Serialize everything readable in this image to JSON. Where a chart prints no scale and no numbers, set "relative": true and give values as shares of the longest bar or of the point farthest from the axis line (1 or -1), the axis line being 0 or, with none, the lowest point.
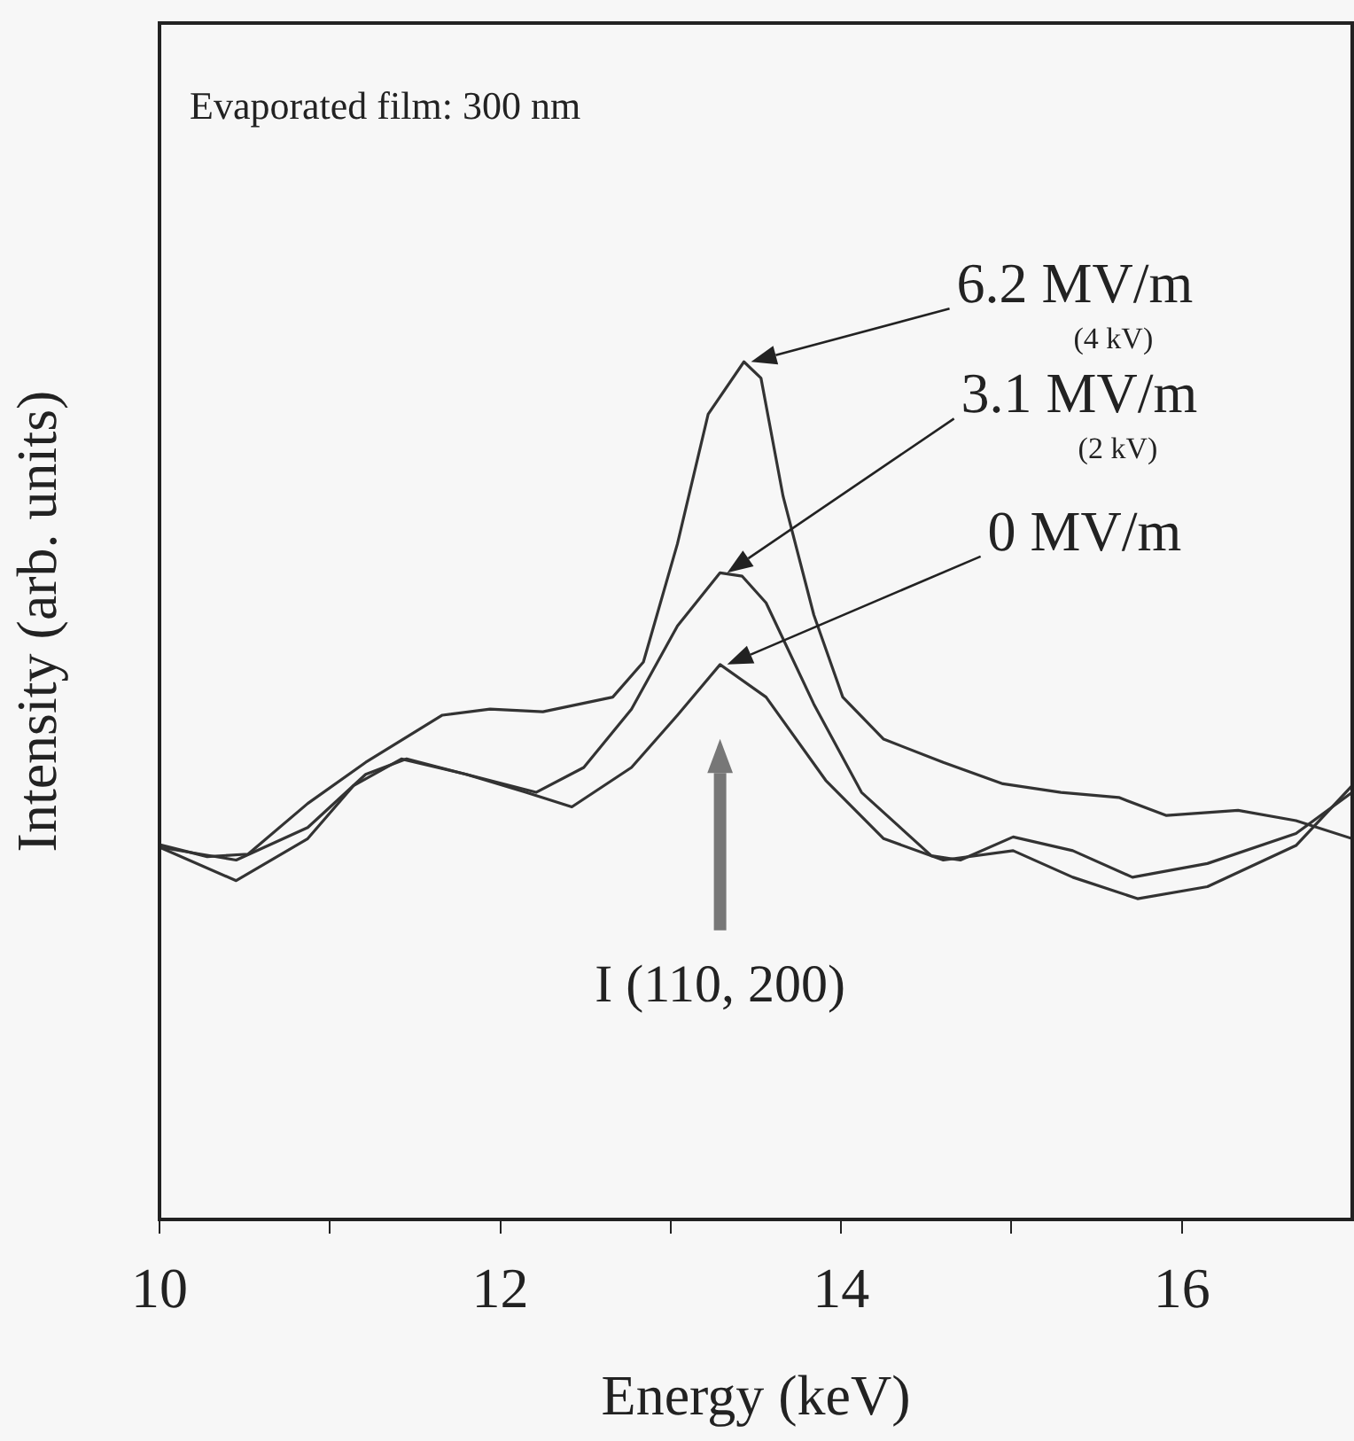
{
  "chart_data": {
    "type": "line",
    "relative": true,
    "xlabel": "Energy (keV)",
    "ylabel": "Intensity (arb. units)",
    "xlim": [
      10,
      17
    ],
    "xticks": [
      10,
      {
        "value": 11,
        "label": null
      },
      12,
      {
        "value": 13,
        "label": null
      },
      14,
      {
        "value": 15,
        "label": null
      },
      16
    ],
    "grid": false,
    "legend": false,
    "marker": "none",
    "line_style": "solid",
    "annotations": [
      "Evaporated film: 300 nm",
      "(4 kV)",
      "(2 kV)",
      "I (110, 200)"
    ],
    "series": [
      {
        "name": "6.2 MV/m",
        "color": "#333333",
        "x": [
          10.0,
          10.28,
          10.52,
          10.87,
          11.21,
          11.66,
          11.94,
          12.25,
          12.66,
          12.84,
          13.04,
          13.22,
          13.43,
          13.53,
          13.66,
          13.84,
          14.01,
          14.25,
          14.6,
          14.95,
          15.29,
          15.63,
          15.91,
          16.33,
          16.67,
          17.0
        ],
        "values": [
          0.437,
          0.423,
          0.426,
          0.485,
          0.533,
          0.588,
          0.595,
          0.592,
          0.609,
          0.65,
          0.788,
          0.939,
          1.0,
          0.981,
          0.843,
          0.705,
          0.609,
          0.56,
          0.533,
          0.508,
          0.498,
          0.492,
          0.471,
          0.477,
          0.465,
          0.444
        ]
      },
      {
        "name": "3.1 MV/m",
        "color": "#333333",
        "x": [
          10.0,
          10.45,
          10.87,
          11.21,
          11.45,
          11.8,
          12.21,
          12.49,
          12.77,
          13.04,
          13.29,
          13.42,
          13.56,
          13.84,
          14.12,
          14.53,
          14.7,
          15.01,
          15.36,
          15.71,
          16.15,
          16.67,
          17.0
        ],
        "values": [
          0.434,
          0.419,
          0.457,
          0.519,
          0.537,
          0.519,
          0.498,
          0.527,
          0.595,
          0.692,
          0.754,
          0.75,
          0.719,
          0.601,
          0.498,
          0.424,
          0.419,
          0.446,
          0.43,
          0.399,
          0.415,
          0.45,
          0.498
        ]
      },
      {
        "name": "0 MV/m",
        "color": "#333333",
        "x": [
          10.0,
          10.45,
          10.87,
          11.14,
          11.42,
          11.8,
          12.15,
          12.42,
          12.77,
          13.04,
          13.29,
          13.56,
          13.91,
          14.25,
          14.6,
          15.01,
          15.36,
          15.74,
          16.15,
          16.67,
          17.0
        ],
        "values": [
          0.434,
          0.395,
          0.444,
          0.506,
          0.537,
          0.519,
          0.498,
          0.481,
          0.527,
          0.588,
          0.647,
          0.609,
          0.512,
          0.444,
          0.419,
          0.43,
          0.399,
          0.374,
          0.388,
          0.436,
          0.506
        ]
      }
    ]
  }
}
